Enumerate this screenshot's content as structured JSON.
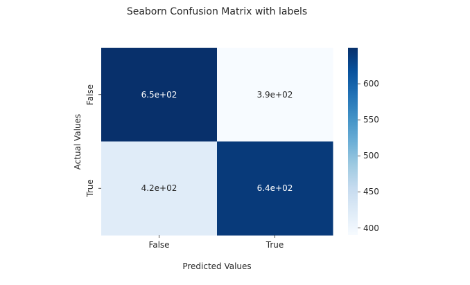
{
  "chart_data": {
    "type": "heatmap",
    "title": "Seaborn Confusion Matrix with labels",
    "xlabel": "Predicted Values",
    "ylabel": "Actual Values",
    "x_categories": [
      "False",
      "True"
    ],
    "y_categories": [
      "False",
      "True"
    ],
    "values": [
      [
        650,
        390
      ],
      [
        420,
        640
      ]
    ],
    "annotations": [
      [
        "6.5e+02",
        "3.9e+02"
      ],
      [
        "4.2e+02",
        "6.4e+02"
      ]
    ],
    "colormap": "Blues",
    "colorbar": {
      "vmin": 390,
      "vmax": 650,
      "ticks": [
        400,
        450,
        500,
        550,
        600
      ],
      "tick_labels": [
        "400",
        "450",
        "500",
        "550",
        "600"
      ]
    },
    "grid": false
  }
}
